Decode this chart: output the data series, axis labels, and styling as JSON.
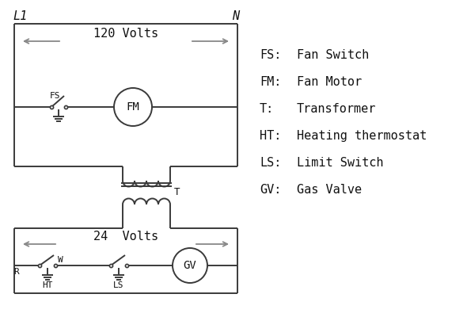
{
  "background_color": "#ffffff",
  "line_color": "#3a3a3a",
  "arrow_color": "#888888",
  "text_color": "#111111",
  "legend": {
    "FS": "Fan Switch",
    "FM": "Fan Motor",
    "T": "Transformer",
    "HT": "Heating thermostat",
    "LS": "Limit Switch",
    "GV": "Gas Valve"
  },
  "L1_label": "L1",
  "N_label": "N",
  "volts120_label": "120 Volts",
  "volts24_label": "24  Volts",
  "T_label": "T",
  "R_label": "R",
  "W_label": "W",
  "HT_label": "HT",
  "LS_label": "LS",
  "FS_label": "FS",
  "FM_label": "FM",
  "GV_label": "GV"
}
